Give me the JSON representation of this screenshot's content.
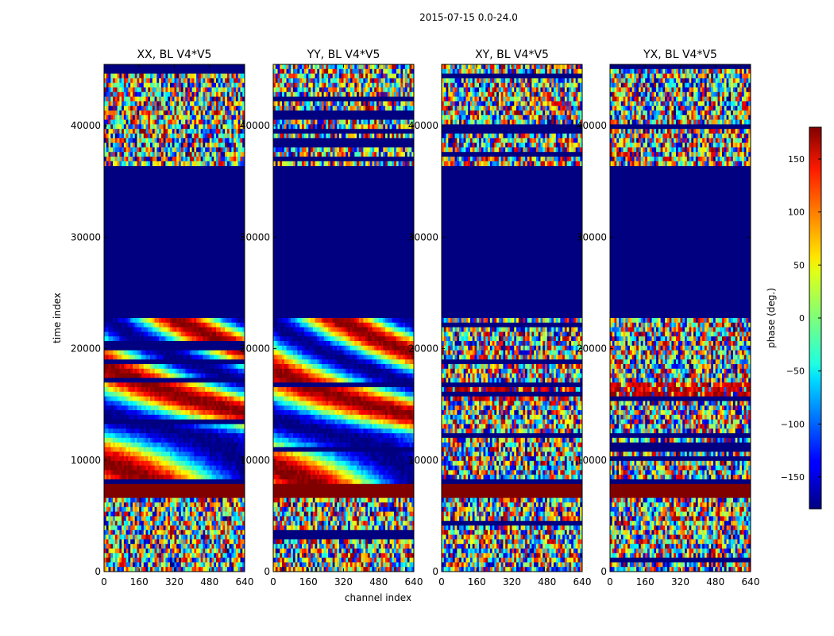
{
  "figure_title": "2015-07-15 0.0-24.0",
  "chart_data": {
    "type": "heatmap",
    "suptitle": "2015-07-15 0.0-24.0",
    "xlabel": "channel index",
    "ylabel": "time index",
    "xlim": [
      0,
      640
    ],
    "ylim": [
      0,
      45500
    ],
    "x_ticks": [
      0,
      160,
      320,
      480,
      640
    ],
    "x_tick_labels": [
      "0",
      "160",
      "320",
      "480",
      "640"
    ],
    "y_ticks": [
      0,
      10000,
      20000,
      30000,
      40000
    ],
    "y_tick_labels": [
      "0",
      "10000",
      "20000",
      "30000",
      "40000"
    ],
    "colormap": "jet",
    "colorbar": {
      "label": "phase (deg.)",
      "vmin": -180,
      "vmax": 180,
      "ticks": [
        150,
        100,
        50,
        0,
        -50,
        -100,
        -150
      ],
      "tick_labels": [
        "150",
        "100",
        "50",
        "0",
        "−50",
        "−100",
        "−150"
      ]
    },
    "bands": [
      {
        "from": 0,
        "to": 6600,
        "kind": "noise"
      },
      {
        "from": 6600,
        "to": 7700,
        "kind": "constant",
        "phase": 180
      },
      {
        "from": 7700,
        "to": 22800,
        "kind": "signal"
      },
      {
        "from": 22800,
        "to": 36400,
        "kind": "constant",
        "phase": -180
      },
      {
        "from": 36400,
        "to": 45500,
        "kind": "noise"
      }
    ],
    "panels": [
      {
        "title": "XX, BL V4*V5",
        "pol": "XX",
        "baseline": "V4*V5",
        "structure": "smooth phase fringes"
      },
      {
        "title": "YY, BL V4*V5",
        "pol": "YY",
        "baseline": "V4*V5",
        "structure": "smooth phase fringes"
      },
      {
        "title": "XY, BL V4*V5",
        "pol": "XY",
        "baseline": "V4*V5",
        "structure": "noise-dominated"
      },
      {
        "title": "YX, BL V4*V5",
        "pol": "YX",
        "baseline": "V4*V5",
        "structure": "noise-dominated"
      }
    ]
  }
}
